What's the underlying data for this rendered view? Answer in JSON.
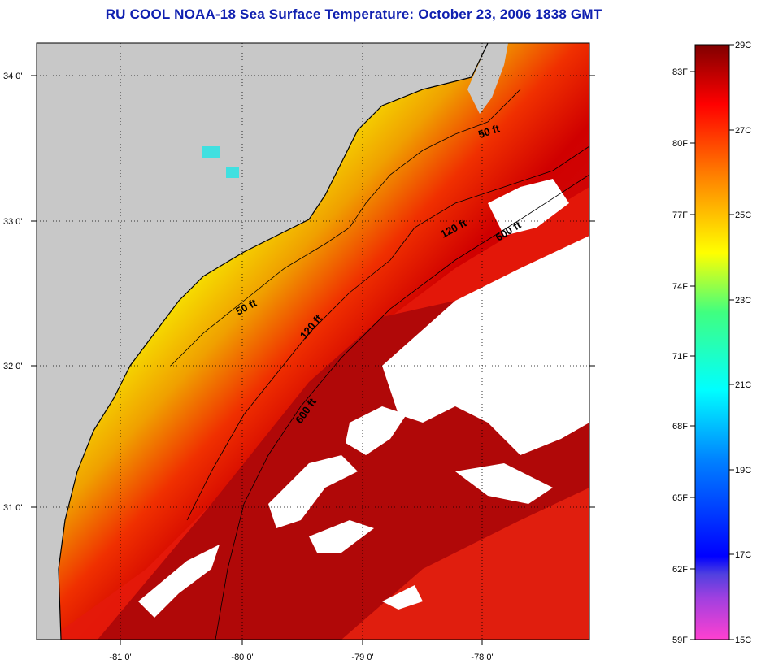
{
  "title": "RU COOL  NOAA-18  Sea Surface Temperature:  October 23, 2006 1838 GMT",
  "map": {
    "lat_ticks": [
      "34 0'",
      "33 0'",
      "32 0'",
      "31 0'"
    ],
    "lon_ticks": [
      "-81 0'",
      "-80 0'",
      "-79 0'",
      "-78 0'"
    ],
    "contour_labels": [
      "50 ft",
      "120 ft",
      "600 ft",
      "50 ft",
      "120 ft",
      "600 ft"
    ],
    "colors": {
      "land": "#c8c8c8",
      "cloud": "#ffffff",
      "nearshore": "#40e0c0",
      "shelf": "#f8e000",
      "midshelf": "#f08000",
      "offshore": "#e01010",
      "gulfstream": "#b00000"
    }
  },
  "colorbar": {
    "fahrenheit_labels": [
      "83F",
      "80F",
      "77F",
      "74F",
      "71F",
      "68F",
      "65F",
      "62F",
      "59F"
    ],
    "celsius_labels": [
      "29C",
      "27C",
      "25C",
      "23C",
      "21C",
      "19C",
      "17C",
      "15C"
    ],
    "range_c": [
      15,
      29
    ]
  }
}
